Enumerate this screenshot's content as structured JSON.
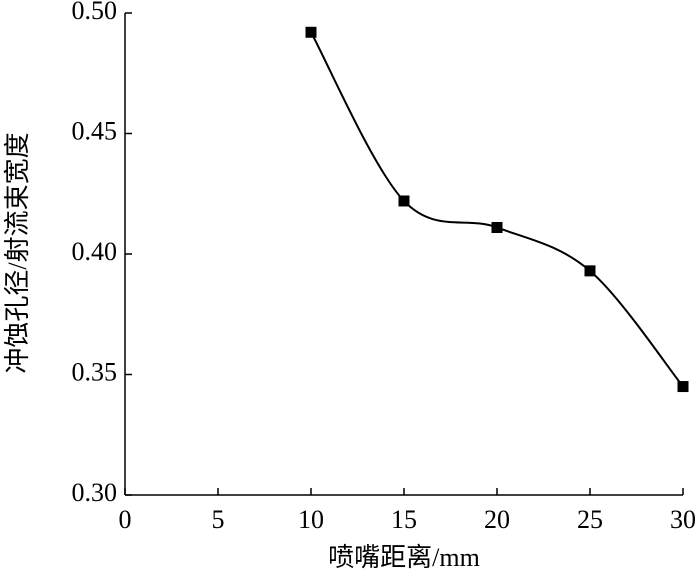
{
  "chart_data": {
    "type": "line",
    "x_label": "喷嘴距离/mm",
    "y_label": "冲蚀孔径/射流束宽度",
    "x": [
      10,
      15,
      20,
      25,
      30
    ],
    "values": [
      0.492,
      0.422,
      0.411,
      0.393,
      0.345
    ],
    "color": "#000000",
    "smooth": true,
    "marker": "square",
    "xlim": [
      0,
      30
    ],
    "xticks": [
      0,
      5,
      10,
      15,
      20,
      25,
      30
    ],
    "ylim": [
      0.3,
      0.5
    ],
    "yticks": [
      {
        "value": 0.3,
        "label": "0.30"
      },
      0.35,
      {
        "value": 0.4,
        "label": "0.40"
      },
      0.45,
      {
        "value": 0.5,
        "label": "0.50"
      }
    ]
  }
}
